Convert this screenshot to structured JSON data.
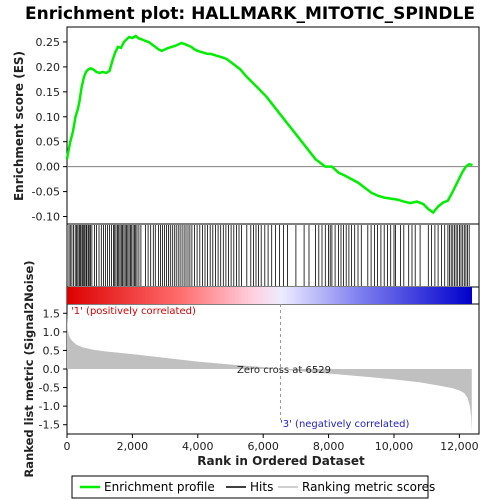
{
  "title": "Enrichment plot: HALLMARK_MITOTIC_SPINDLE",
  "colors": {
    "es_line": "#00ee00",
    "hits": "#000000",
    "metric_fill": "#c0c0c0",
    "positive_label": "#dd0000",
    "negative_label": "#2222cc",
    "gradient_pos": "#dd0000",
    "gradient_neg": "#0000cc"
  },
  "legend": {
    "items": [
      {
        "label": "Enrichment profile",
        "color": "#00ee00"
      },
      {
        "label": "Hits",
        "color": "#000000"
      },
      {
        "label": "Ranking metric scores",
        "color": "#c0c0c0"
      }
    ]
  },
  "annotations": {
    "positive": "'1' (positively correlated)",
    "negative": "'3' (negatively correlated)",
    "zero_cross": "Zero cross at 6529"
  },
  "chart_data": [
    {
      "type": "line",
      "panel": "enrichment",
      "ylabel": "Enrichment score (ES)",
      "ylim": [
        -0.115,
        0.28
      ],
      "xlim": [
        0,
        12600
      ],
      "yticks": [
        -0.1,
        -0.05,
        0.0,
        0.05,
        0.1,
        0.15,
        0.2,
        0.25
      ],
      "ytick_labels": [
        "-0.10",
        "-0.05",
        "0.00",
        "0.05",
        "0.10",
        "0.15",
        "0.20",
        "0.25"
      ],
      "zero_line": true,
      "series": [
        {
          "x": [
            0,
            40,
            100,
            180,
            260,
            330,
            380,
            450,
            520,
            580,
            650,
            720,
            800,
            900,
            1000,
            1100,
            1200,
            1300,
            1400,
            1480,
            1560,
            1650,
            1740,
            1820,
            1900,
            2000,
            2100,
            2200,
            2300,
            2400,
            2500,
            2600,
            2700,
            2800,
            2900,
            3000,
            3100,
            3200,
            3300,
            3400,
            3500,
            3600,
            3700,
            3800,
            3900,
            4000,
            4100,
            4200,
            4300,
            4400,
            4500,
            4600,
            4700,
            4800,
            4900,
            5000,
            5100,
            5200,
            5300,
            5500,
            5800,
            6100,
            6400,
            6700,
            7000,
            7300,
            7600,
            7900,
            8100,
            8300,
            8500,
            8700,
            8900,
            9100,
            9300,
            9500,
            9700,
            9900,
            10100,
            10300,
            10500,
            10700,
            10900,
            11050,
            11200,
            11350,
            11500,
            11650,
            11800,
            11950,
            12100,
            12200,
            12300,
            12400
          ],
          "y": [
            0.015,
            0.03,
            0.05,
            0.07,
            0.1,
            0.115,
            0.13,
            0.16,
            0.18,
            0.19,
            0.195,
            0.197,
            0.195,
            0.19,
            0.188,
            0.19,
            0.188,
            0.192,
            0.215,
            0.23,
            0.24,
            0.238,
            0.25,
            0.255,
            0.26,
            0.258,
            0.262,
            0.257,
            0.255,
            0.252,
            0.25,
            0.245,
            0.24,
            0.235,
            0.232,
            0.235,
            0.238,
            0.24,
            0.242,
            0.245,
            0.248,
            0.246,
            0.243,
            0.24,
            0.235,
            0.232,
            0.23,
            0.228,
            0.226,
            0.226,
            0.224,
            0.222,
            0.22,
            0.218,
            0.215,
            0.21,
            0.205,
            0.2,
            0.195,
            0.18,
            0.16,
            0.14,
            0.115,
            0.09,
            0.065,
            0.04,
            0.015,
            0.0,
            0.0,
            -0.012,
            -0.018,
            -0.025,
            -0.032,
            -0.042,
            -0.052,
            -0.058,
            -0.062,
            -0.064,
            -0.066,
            -0.07,
            -0.073,
            -0.07,
            -0.075,
            -0.085,
            -0.092,
            -0.08,
            -0.072,
            -0.068,
            -0.05,
            -0.03,
            -0.01,
            0.0,
            0.005,
            0.003
          ]
        }
      ]
    },
    {
      "type": "line",
      "panel": "hits",
      "hit_ranks": [
        60,
        100,
        150,
        200,
        250,
        290,
        330,
        370,
        400,
        430,
        470,
        510,
        540,
        580,
        610,
        650,
        680,
        720,
        760,
        840,
        900,
        980,
        1050,
        1120,
        1180,
        1240,
        1300,
        1360,
        1420,
        1460,
        1500,
        1540,
        1580,
        1620,
        1660,
        1700,
        1740,
        1780,
        1820,
        1860,
        1900,
        1940,
        1980,
        2020,
        2060,
        2100,
        2140,
        2200,
        2260,
        2400,
        2480,
        2560,
        2640,
        2700,
        2800,
        2860,
        2920,
        2980,
        3040,
        3100,
        3160,
        3220,
        3280,
        3340,
        3400,
        3460,
        3520,
        3580,
        3640,
        3700,
        3760,
        3820,
        3900,
        3980,
        4060,
        4140,
        4220,
        4300,
        4380,
        4460,
        4540,
        4620,
        4700,
        4780,
        4860,
        4940,
        5020,
        5100,
        5180,
        5260,
        5340,
        5500,
        5620,
        5700,
        5780,
        5860,
        5940,
        6050,
        6150,
        6260,
        6380,
        6500,
        6620,
        6740,
        7000,
        7250,
        7400,
        7600,
        7700,
        7800,
        7900,
        8000,
        8050,
        8100,
        8200,
        8300,
        8380,
        8460,
        8540,
        8620,
        8700,
        8800,
        8900,
        9000,
        9200,
        9300,
        9400,
        9500,
        9600,
        9700,
        9800,
        9900,
        10000,
        10050,
        10200,
        10300,
        10450,
        10550,
        10650,
        10800,
        11050,
        11150,
        11250,
        11350,
        11450,
        11550,
        11650,
        11700,
        11750,
        11800,
        11850,
        11900,
        11950,
        12000,
        12050,
        12100,
        12150,
        12200,
        12250,
        12300
      ]
    },
    {
      "type": "area",
      "panel": "ranked_metric",
      "ylabel": "Ranked list metric (Signal2Noise)",
      "xlabel": "Rank in Ordered Dataset",
      "ylim": [
        -1.75,
        1.75
      ],
      "xlim": [
        0,
        12600
      ],
      "yticks": [
        -1.5,
        -1.0,
        -0.5,
        0.0,
        0.5,
        1.0,
        1.5
      ],
      "ytick_labels": [
        "-1.5",
        "-1.0",
        "-0.5",
        "0.0",
        "0.5",
        "1.0",
        "1.5"
      ],
      "xticks": [
        0,
        2000,
        4000,
        6000,
        8000,
        10000,
        12000
      ],
      "xtick_labels": [
        "0",
        "2,000",
        "4,000",
        "6,000",
        "8,000",
        "10,000",
        "12,000"
      ],
      "zero_cross": 6529,
      "series": [
        {
          "x": [
            0,
            20,
            60,
            120,
            200,
            300,
            500,
            800,
            1200,
            2000,
            3000,
            4000,
            5000,
            6000,
            6529,
            7000,
            8000,
            9000,
            10000,
            10800,
            11400,
            11800,
            12000,
            12150,
            12250,
            12320,
            12360,
            12380
          ],
          "y": [
            1.55,
            1.05,
            0.9,
            0.8,
            0.72,
            0.65,
            0.58,
            0.52,
            0.47,
            0.4,
            0.3,
            0.2,
            0.12,
            0.05,
            0.0,
            -0.05,
            -0.12,
            -0.2,
            -0.28,
            -0.36,
            -0.45,
            -0.52,
            -0.58,
            -0.65,
            -0.78,
            -1.0,
            -1.3,
            -1.72
          ]
        }
      ]
    }
  ]
}
